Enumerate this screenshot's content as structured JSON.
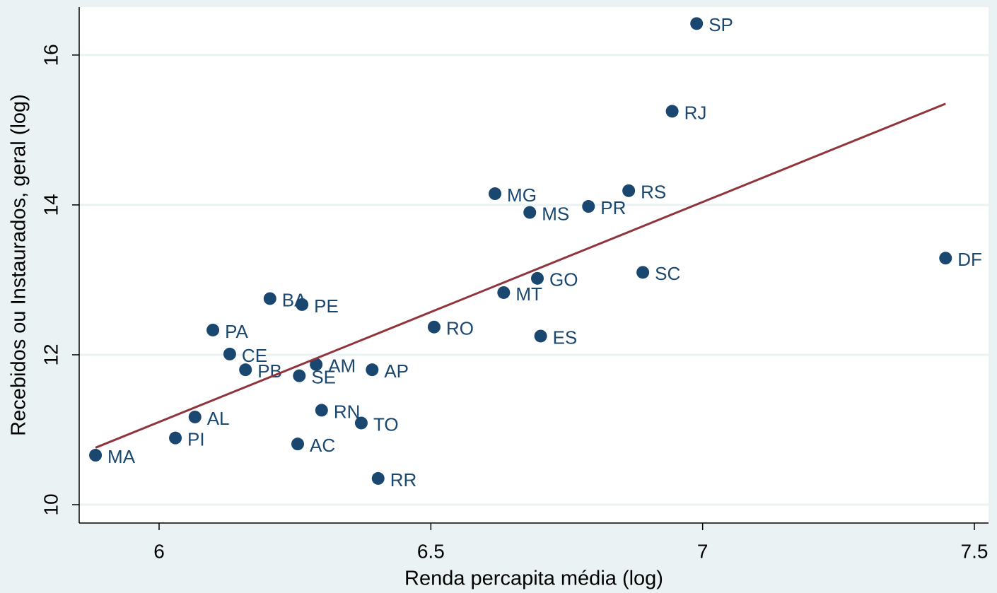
{
  "chart_data": {
    "type": "scatter",
    "x_label": "Renda percapita média (log)",
    "y_label": "Recebidos ou Instaurados, geral (log)",
    "labels": [
      "SP",
      "RJ",
      "MG",
      "RS",
      "MS",
      "PR",
      "DF",
      "SC",
      "GO",
      "MT",
      "BA",
      "PE",
      "RO",
      "ES",
      "PA",
      "CE",
      "AM",
      "PB",
      "AP",
      "SE",
      "RN",
      "TO",
      "AL",
      "PI",
      "AC",
      "MA",
      "RR"
    ],
    "x": [
      6.989,
      6.944,
      6.618,
      6.864,
      6.682,
      6.79,
      7.447,
      6.89,
      6.696,
      6.634,
      6.204,
      6.263,
      6.506,
      6.702,
      6.099,
      6.13,
      6.289,
      6.159,
      6.392,
      6.258,
      6.299,
      6.372,
      6.066,
      6.03,
      6.255,
      5.883,
      6.403
    ],
    "values": [
      16.42,
      15.25,
      14.15,
      14.19,
      13.9,
      13.98,
      13.29,
      13.1,
      13.02,
      12.83,
      12.75,
      12.67,
      12.37,
      12.25,
      12.33,
      12.01,
      11.87,
      11.8,
      11.8,
      11.72,
      11.26,
      11.09,
      11.17,
      10.89,
      10.81,
      10.66,
      10.35
    ],
    "color": "#1a476f",
    "fit_line": {
      "x": [
        5.883,
        7.447
      ],
      "y": [
        10.76,
        15.35
      ],
      "color": "#90353b"
    },
    "xlim": [
      5.853,
      7.526
    ],
    "ylim": [
      9.755,
      16.64
    ],
    "xticks": [
      6,
      6.5,
      7,
      7.5
    ],
    "yticks": [
      10,
      12,
      14,
      16
    ],
    "grid": true
  }
}
